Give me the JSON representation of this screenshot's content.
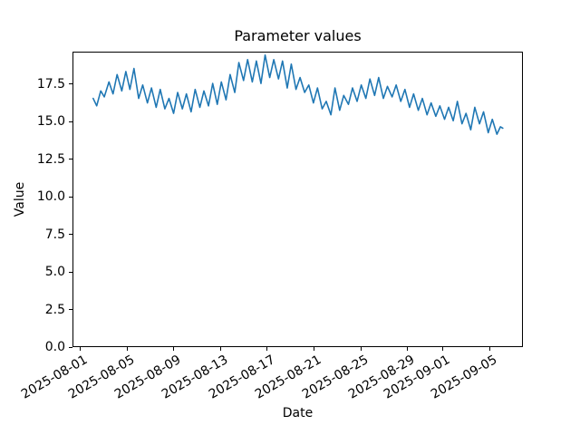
{
  "figure": {
    "title": "Parameter values",
    "xlabel": "Date",
    "ylabel": "Value"
  },
  "chart_data": {
    "type": "line",
    "title": "Parameter values",
    "xlabel": "Date",
    "ylabel": "Value",
    "line_color": "#1f77b4",
    "background_color": "#ffffff",
    "grid": false,
    "legend": false,
    "x_unit": "days since 2025-08-01",
    "xlim_days": [
      -0.65,
      37.85
    ],
    "ylim": [
      0,
      19.67
    ],
    "x_ticks": [
      {
        "day": 0,
        "label": "2025-08-01"
      },
      {
        "day": 4,
        "label": "2025-08-05"
      },
      {
        "day": 8,
        "label": "2025-08-09"
      },
      {
        "day": 12,
        "label": "2025-08-13"
      },
      {
        "day": 16,
        "label": "2025-08-17"
      },
      {
        "day": 20,
        "label": "2025-08-21"
      },
      {
        "day": 24,
        "label": "2025-08-25"
      },
      {
        "day": 28,
        "label": "2025-08-29"
      },
      {
        "day": 31,
        "label": "2025-09-01"
      },
      {
        "day": 35,
        "label": "2025-09-05"
      }
    ],
    "y_ticks": [
      {
        "value": 0,
        "label": "0.0"
      },
      {
        "value": 2.5,
        "label": "2.5"
      },
      {
        "value": 5,
        "label": "5.0"
      },
      {
        "value": 7.5,
        "label": "7.5"
      },
      {
        "value": 10,
        "label": "10.0"
      },
      {
        "value": 12.5,
        "label": "12.5"
      },
      {
        "value": 15,
        "label": "15.0"
      },
      {
        "value": 17.5,
        "label": "17.5"
      }
    ],
    "points": [
      [
        1.05,
        16.6
      ],
      [
        1.35,
        16.1
      ],
      [
        1.7,
        17.1
      ],
      [
        2.0,
        16.7
      ],
      [
        2.4,
        17.7
      ],
      [
        2.75,
        16.9
      ],
      [
        3.1,
        18.2
      ],
      [
        3.5,
        17.1
      ],
      [
        3.85,
        18.4
      ],
      [
        4.2,
        17.2
      ],
      [
        4.55,
        18.6
      ],
      [
        4.95,
        16.6
      ],
      [
        5.3,
        17.5
      ],
      [
        5.7,
        16.3
      ],
      [
        6.05,
        17.3
      ],
      [
        6.45,
        16.0
      ],
      [
        6.8,
        17.2
      ],
      [
        7.2,
        15.9
      ],
      [
        7.55,
        16.6
      ],
      [
        7.95,
        15.6
      ],
      [
        8.3,
        17.0
      ],
      [
        8.7,
        15.9
      ],
      [
        9.05,
        16.9
      ],
      [
        9.45,
        15.7
      ],
      [
        9.8,
        17.2
      ],
      [
        10.2,
        16.0
      ],
      [
        10.55,
        17.1
      ],
      [
        10.95,
        16.1
      ],
      [
        11.3,
        17.6
      ],
      [
        11.7,
        16.2
      ],
      [
        12.05,
        17.7
      ],
      [
        12.45,
        16.5
      ],
      [
        12.8,
        18.2
      ],
      [
        13.2,
        17.0
      ],
      [
        13.55,
        19.0
      ],
      [
        13.95,
        17.8
      ],
      [
        14.3,
        19.2
      ],
      [
        14.7,
        17.7
      ],
      [
        15.05,
        19.1
      ],
      [
        15.45,
        17.6
      ],
      [
        15.8,
        19.5
      ],
      [
        16.2,
        18.0
      ],
      [
        16.55,
        19.2
      ],
      [
        16.95,
        17.9
      ],
      [
        17.3,
        19.1
      ],
      [
        17.7,
        17.3
      ],
      [
        18.05,
        18.9
      ],
      [
        18.45,
        17.2
      ],
      [
        18.8,
        18.0
      ],
      [
        19.2,
        17.0
      ],
      [
        19.55,
        17.5
      ],
      [
        19.95,
        16.3
      ],
      [
        20.3,
        17.3
      ],
      [
        20.7,
        15.9
      ],
      [
        21.05,
        16.4
      ],
      [
        21.45,
        15.5
      ],
      [
        21.8,
        17.3
      ],
      [
        22.2,
        15.8
      ],
      [
        22.55,
        16.8
      ],
      [
        22.95,
        16.2
      ],
      [
        23.3,
        17.3
      ],
      [
        23.7,
        16.4
      ],
      [
        24.05,
        17.5
      ],
      [
        24.45,
        16.6
      ],
      [
        24.8,
        17.9
      ],
      [
        25.2,
        16.8
      ],
      [
        25.55,
        18.0
      ],
      [
        25.95,
        16.6
      ],
      [
        26.3,
        17.4
      ],
      [
        26.7,
        16.7
      ],
      [
        27.05,
        17.5
      ],
      [
        27.45,
        16.4
      ],
      [
        27.8,
        17.2
      ],
      [
        28.2,
        16.0
      ],
      [
        28.55,
        16.9
      ],
      [
        28.95,
        15.8
      ],
      [
        29.3,
        16.6
      ],
      [
        29.7,
        15.5
      ],
      [
        30.05,
        16.3
      ],
      [
        30.45,
        15.4
      ],
      [
        30.8,
        16.1
      ],
      [
        31.2,
        15.2
      ],
      [
        31.55,
        16.0
      ],
      [
        31.95,
        15.1
      ],
      [
        32.3,
        16.4
      ],
      [
        32.7,
        14.9
      ],
      [
        33.05,
        15.6
      ],
      [
        33.45,
        14.5
      ],
      [
        33.8,
        16.0
      ],
      [
        34.2,
        14.9
      ],
      [
        34.55,
        15.7
      ],
      [
        34.95,
        14.3
      ],
      [
        35.3,
        15.2
      ],
      [
        35.7,
        14.2
      ],
      [
        36.0,
        14.7
      ],
      [
        36.2,
        14.6
      ]
    ]
  }
}
